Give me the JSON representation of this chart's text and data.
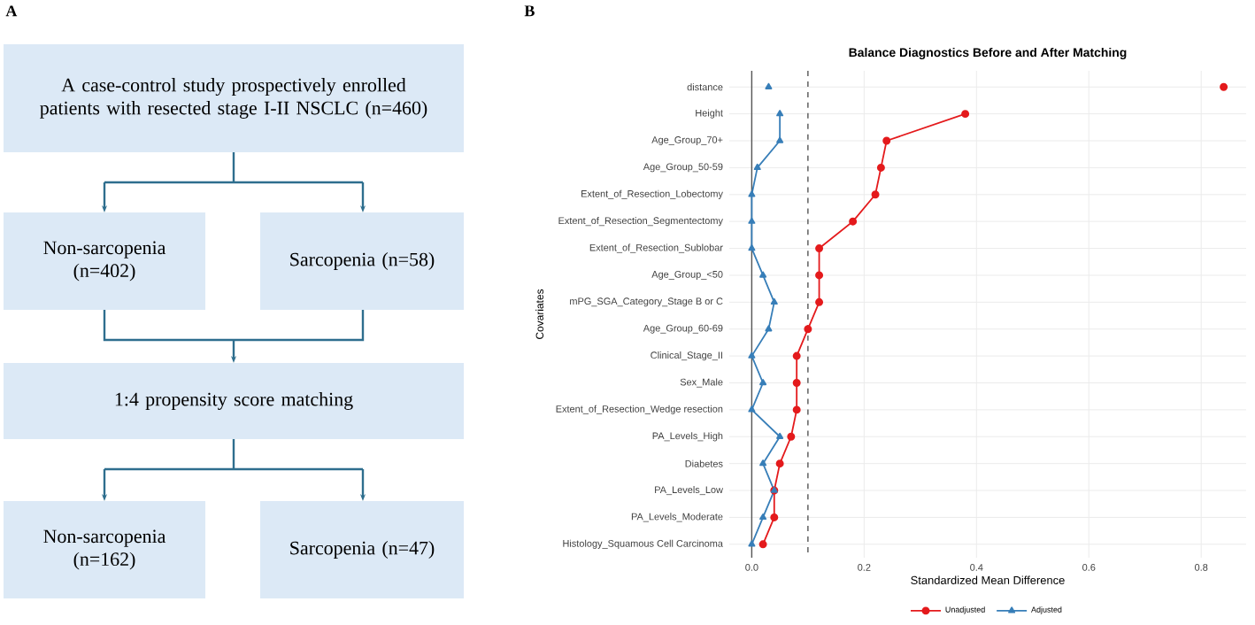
{
  "chart_data": [
    {
      "type": "other",
      "annotations": [
        "A",
        "A case-control study prospectively enrolled patients with resected stage I-II NSCLC (n=460)",
        "Non-sarcopenia (n=402)",
        "Sarcopenia (n=58)",
        "1:4 propensity score matching",
        "Non-sarcopenia (n=162)",
        "Sarcopenia (n=47)"
      ]
    },
    {
      "type": "line",
      "orientation": "horizontal",
      "title": "Balance Diagnostics Before and After Matching",
      "annotations": [
        "B"
      ],
      "xlabel": "Standardized Mean Difference",
      "ylabel": "Covariates",
      "categories": [
        "distance",
        "Height",
        "Age_Group_70+",
        "Age_Group_50-59",
        "Extent_of_Resection_Lobectomy",
        "Extent_of_Resection_Segmentectomy",
        "Extent_of_Resection_Sublobar",
        "Age_Group_<50",
        "mPG_SGA_Category_Stage B or C",
        "Age_Group_60-69",
        "Clinical_Stage_II",
        "Sex_Male",
        "Extent_of_Resection_Wedge resection",
        "PA_Levels_High",
        "Diabetes",
        "PA_Levels_Low",
        "PA_Levels_Moderate",
        "Histology_Squamous Cell Carcinoma"
      ],
      "series": [
        {
          "name": "Unadjusted",
          "color": "#e41a1c",
          "marker": "circle",
          "values": [
            null,
            0.38,
            0.24,
            0.23,
            0.22,
            0.18,
            0.12,
            0.12,
            0.12,
            0.1,
            0.08,
            0.08,
            0.08,
            0.07,
            0.05,
            0.04,
            0.04,
            0.02
          ]
        },
        {
          "name": "Adjusted",
          "color": "#377eb8",
          "marker": "triangle",
          "values": [
            null,
            0.05,
            0.05,
            0.01,
            0.0,
            0.0,
            0.0,
            0.02,
            0.04,
            0.03,
            0.0,
            0.02,
            0.0,
            0.05,
            0.02,
            0.04,
            0.02,
            0.0
          ]
        },
        {
          "type": "scatter",
          "color": "#e41a1c",
          "marker": "circle",
          "values": [
            0.84,
            null,
            null,
            null,
            null,
            null,
            null,
            null,
            null,
            null,
            null,
            null,
            null,
            null,
            null,
            null,
            null,
            null
          ]
        },
        {
          "type": "scatter",
          "color": "#377eb8",
          "marker": "triangle",
          "values": [
            0.03,
            null,
            null,
            null,
            null,
            null,
            null,
            null,
            null,
            null,
            null,
            null,
            null,
            null,
            null,
            null,
            null,
            null
          ]
        }
      ],
      "xlim": [
        -0.04,
        0.88
      ],
      "xticks": [
        {
          "value": 0,
          "label": "0.0"
        },
        0.2,
        0.4,
        0.6,
        0.8
      ],
      "ref_lines": [
        {
          "axis": "x",
          "value": 0,
          "color": "#555555",
          "line_style": "solid"
        },
        {
          "axis": "x",
          "value": 0.1,
          "color": "#555555",
          "line_style": "dashed"
        }
      ],
      "grid": true,
      "legend": "bottom"
    }
  ]
}
